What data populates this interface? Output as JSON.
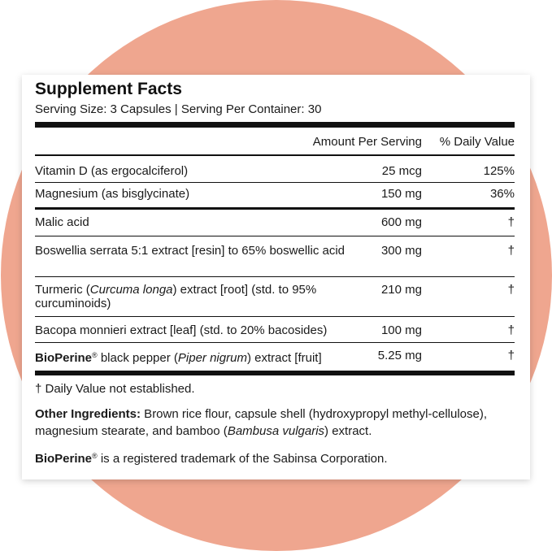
{
  "title": "Supplement Facts",
  "serving": "Serving Size: 3 Capsules | Serving Per Container: 30",
  "table": {
    "headers": [
      "Amount Per Serving",
      "% Daily Value"
    ],
    "rows": [
      {
        "name": [
          "Vitamin D (as ergocalciferol)"
        ],
        "amount": "25 mcg",
        "dv": "125%"
      },
      {
        "name": [
          "Magnesium (as bisglycinate)"
        ],
        "amount": "150 mg",
        "dv": "36%"
      },
      {
        "name": [
          "Malic acid"
        ],
        "amount": "600 mg",
        "dv": "†"
      },
      {
        "name": [
          "Boswellia serrata 5:1 extract [resin] to 65% boswellic acid"
        ],
        "amount": "300 mg",
        "dv": "†"
      },
      {
        "name": [
          "Turmeric (",
          "Curcuma longa",
          ") extract [root] (std. to 95% curcuminoids)"
        ],
        "amount": "210 mg",
        "dv": "†"
      },
      {
        "name": [
          "Bacopa monnieri extract [leaf] (std. to 20% bacosides)"
        ],
        "amount": "100 mg",
        "dv": "†"
      },
      {
        "name": [
          "BioPerine",
          "®",
          " black pepper (",
          "Piper nigrum",
          ") extract [fruit]"
        ],
        "amount": "5.25 mg",
        "dv": "†"
      }
    ]
  },
  "footnote": "† Daily Value not established.",
  "other_ingredients": {
    "label": "Other Ingredients:",
    "text": [
      " Brown rice flour, capsule shell (hydroxypropyl methyl-cellulose), magnesium stearate, and bamboo (",
      "Bambusa vulgaris",
      ") extract."
    ]
  },
  "trademark": {
    "brand": "BioPerine",
    "mark": "®",
    "text": " is a registered trademark of the Sabinsa Corporation."
  }
}
